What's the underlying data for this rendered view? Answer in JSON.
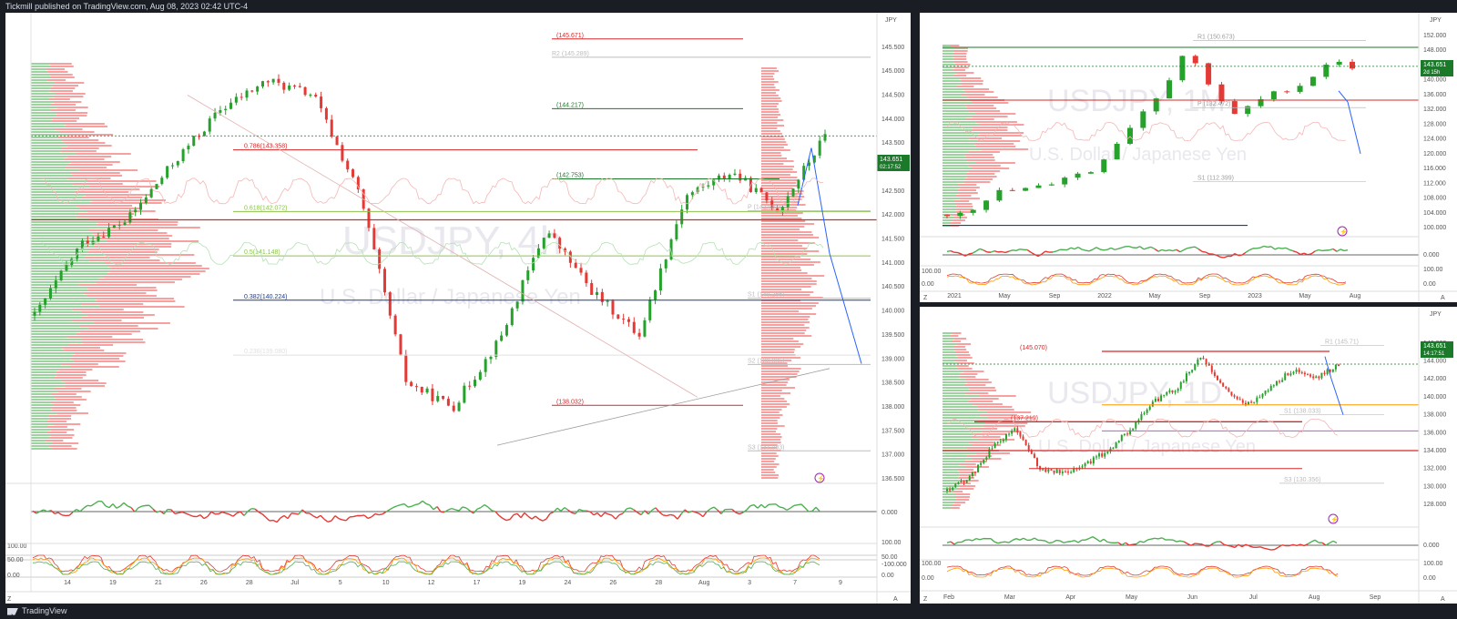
{
  "header": {
    "text": "Tickmill published on TradingView.com, Aug 08, 2023 02:42 UTC-4"
  },
  "footer": {
    "brand": "TradingView"
  },
  "colors": {
    "up": "#26a12c",
    "down": "#e53935",
    "support": "#1b7a2a",
    "resistance": "#d62828",
    "target": "#2962ff",
    "price_tag": "#1b7a2a"
  },
  "panels": {
    "main": {
      "symbol": "USDJPY, 4h",
      "description": "U.S. Dollar / Japanese Yen",
      "currency": "JPY",
      "price_tag": "143.651",
      "price_tag_time": "02:17:52",
      "x_labels": [
        "14",
        "19",
        "21",
        "26",
        "28",
        "Jul",
        "5",
        "10",
        "12",
        "17",
        "19",
        "24",
        "26",
        "28",
        "Aug",
        "3",
        "7",
        "9"
      ],
      "y_labels": [
        "145.500",
        "145.000",
        "144.500",
        "144.000",
        "143.500",
        "143.000",
        "142.500",
        "142.000",
        "141.500",
        "141.000",
        "140.500",
        "140.000",
        "139.500",
        "139.000",
        "138.500",
        "138.000",
        "137.500",
        "137.000",
        "136.500"
      ],
      "levels": [
        {
          "label": "(145.671)",
          "color": "#d62828"
        },
        {
          "label": "R2 (145.289)",
          "color": "#9e9e9e"
        },
        {
          "label": "(144.217)",
          "color": "#1b7a2a"
        },
        {
          "label": "0.786(143.358)",
          "color": "#d62828"
        },
        {
          "label": "(142.753)",
          "color": "#1b7a2a"
        },
        {
          "label": "0.618(142.072)",
          "color": "#8bc34a"
        },
        {
          "label": "P (142.087)",
          "color": "#9e9e9e"
        },
        {
          "label": "0.5(141.148)",
          "color": "#8bc34a"
        },
        {
          "label": "0.382(140.224)",
          "color": "#1e3a8a"
        },
        {
          "label": "S1 (140.265)",
          "color": "#9e9e9e"
        },
        {
          "label": "0.236(139.080)",
          "color": "#bdbdbd"
        },
        {
          "label": "S2 (138.885)",
          "color": "#9e9e9e"
        },
        {
          "label": "(138.032)",
          "color": "#d62828"
        },
        {
          "label": "S3 (137.083)",
          "color": "#9e9e9e"
        }
      ],
      "osc1_labels": [
        "0.000",
        "-100.000"
      ],
      "osc2_labels": [
        "100.00",
        "50.00",
        "0.00"
      ],
      "osc2_left_labels": [
        "100.00",
        "50.00",
        "0.00"
      ]
    },
    "monthly": {
      "symbol": "USDJPY, 1M",
      "description": "U.S. Dollar / Japanese Yen",
      "currency": "JPY",
      "price_tag": "143.651",
      "price_tag_time": "2d 15h",
      "x_labels": [
        "2021",
        "May",
        "Sep",
        "2022",
        "May",
        "Sep",
        "2023",
        "May",
        "Aug"
      ],
      "y_labels": [
        "152.000",
        "148.000",
        "144.000",
        "140.000",
        "136.000",
        "132.000",
        "128.000",
        "124.000",
        "120.000",
        "116.000",
        "112.000",
        "108.000",
        "104.000",
        "100.000"
      ],
      "levels": [
        {
          "label": "R1 (150.673)",
          "color": "#9e9e9e"
        },
        {
          "label": "P (132.472)",
          "color": "#9e9e9e"
        },
        {
          "label": "S1 (112.399)",
          "color": "#9e9e9e"
        }
      ],
      "osc1_labels": [
        "0.000"
      ],
      "osc2_labels": [
        "100.00",
        "0.00"
      ]
    },
    "daily": {
      "symbol": "USDJPY, 1D",
      "description": "U.S. Dollar / Japanese Yen",
      "currency": "JPY",
      "price_tag": "143.651",
      "price_tag_time": "14:17:51",
      "x_labels": [
        "Feb",
        "Mar",
        "Apr",
        "May",
        "Jun",
        "Jul",
        "Aug",
        "Sep"
      ],
      "y_labels": [
        "146.000",
        "144.000",
        "142.000",
        "140.000",
        "138.000",
        "136.000",
        "134.000",
        "132.000",
        "130.000",
        "128.000"
      ],
      "levels": [
        {
          "label": "(145.070)",
          "color": "#d62828"
        },
        {
          "label": "R1 (145.71)",
          "color": "#9e9e9e"
        },
        {
          "label": "S1 (138.033)",
          "color": "#9e9e9e"
        },
        {
          "label": "(137.219)",
          "color": "#d62828"
        },
        {
          "label": "S3 (130.356)",
          "color": "#9e9e9e"
        }
      ],
      "osc1_labels": [
        "0.000"
      ],
      "osc2_labels": [
        "100.00",
        "0.00"
      ]
    }
  },
  "chart_data": [
    {
      "type": "line",
      "title": "USDJPY, 4h",
      "ylabel": "JPY",
      "ylim": [
        136.5,
        145.8
      ],
      "x": [
        "Jun 14",
        "Jun 19",
        "Jun 21",
        "Jun 26",
        "Jun 28",
        "Jul 3",
        "Jul 5",
        "Jul 10",
        "Jul 12",
        "Jul 17",
        "Jul 19",
        "Jul 24",
        "Jul 26",
        "Jul 28",
        "Aug 1",
        "Aug 3",
        "Aug 7"
      ],
      "series": [
        {
          "values": [
            139.9,
            141.4,
            141.9,
            143.1,
            144.2,
            144.8,
            144.5,
            142.4,
            138.5,
            138.0,
            139.4,
            141.7,
            140.4,
            139.5,
            142.4,
            142.9,
            143.65
          ]
        }
      ]
    },
    {
      "type": "line",
      "title": "USDJPY, 1M",
      "ylabel": "JPY",
      "ylim": [
        100,
        154
      ],
      "x": [
        "2021",
        "May",
        "Sep",
        "2022",
        "May",
        "Sep",
        "2023",
        "May",
        "Aug"
      ],
      "series": [
        {
          "values": [
            103.5,
            109.5,
            111.0,
            115.0,
            130.0,
            148.0,
            130.0,
            137.0,
            143.65
          ]
        }
      ]
    },
    {
      "type": "line",
      "title": "USDJPY, 1D",
      "ylabel": "JPY",
      "ylim": [
        127,
        147
      ],
      "x": [
        "Feb",
        "Mar",
        "Apr",
        "May",
        "Jun",
        "Jul",
        "Aug"
      ],
      "series": [
        {
          "values": [
            129.5,
            134.5,
            132.5,
            136.5,
            139.5,
            144.5,
            143.65
          ]
        }
      ]
    }
  ]
}
